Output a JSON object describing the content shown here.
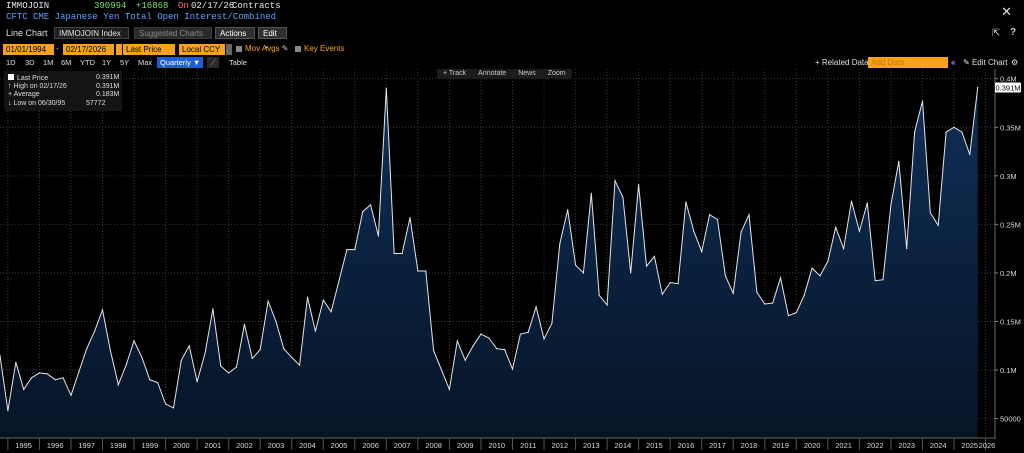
{
  "header": {
    "ticker": "IMMOJOIN",
    "last": "390994",
    "change": "+16868",
    "on": "On",
    "date": "02/17/26",
    "unit": "Contracts",
    "description": "CFTC CME Japanese Yen Total Open Interest/Combined",
    "colors": {
      "last": "#7ce36a",
      "change": "#7ce36a",
      "on": "#ff6a5a"
    }
  },
  "toolbar": {
    "chart_type": "Line Chart",
    "security": "IMMOJOIN Index",
    "suggested": "Suggested Charts",
    "actions": "Actions",
    "edit": "Edit"
  },
  "range": {
    "start": "01/01/1994",
    "end": "02/17/2026",
    "field": "Last Price",
    "currency": "Local CCY",
    "mov_avgs": "Mov Avgs",
    "key_events": "Key Events"
  },
  "periods": [
    "1D",
    "3D",
    "1M",
    "6M",
    "YTD",
    "1Y",
    "5Y",
    "Max"
  ],
  "frequency": "Quarterly",
  "table_label": "Table",
  "related": {
    "label": "+ Related Data",
    "placeholder": "Add Data",
    "edit_chart": "Edit Chart"
  },
  "chart_tools": [
    "+ Track",
    "Annotate",
    "News",
    "Zoom"
  ],
  "legend": [
    {
      "label": "Last Price",
      "value": "0.391M"
    },
    {
      "label": "High on 02/17/26",
      "value": "0.391M"
    },
    {
      "label": "Average",
      "value": "0.183M"
    },
    {
      "label": "Low on 06/30/95",
      "value": "57772"
    }
  ],
  "chart_data": {
    "type": "area",
    "title": "",
    "xlabel": "",
    "ylabel": "",
    "frequency": "quarterly",
    "x_ticks": [
      "1995",
      "1996",
      "1997",
      "1998",
      "1999",
      "2000",
      "2001",
      "2002",
      "2003",
      "2004",
      "2005",
      "2006",
      "2007",
      "2008",
      "2009",
      "2010",
      "2011",
      "2012",
      "2013",
      "2014",
      "2015",
      "2016",
      "2017",
      "2018",
      "2019",
      "2020",
      "2021",
      "2022",
      "2023",
      "2024",
      "2025",
      "2026"
    ],
    "y_ticks": [
      "50000",
      "0.1M",
      "0.15M",
      "0.2M",
      "0.25M",
      "0.3M",
      "0.35M",
      "0.4M"
    ],
    "y_tick_values": [
      50000,
      100000,
      150000,
      200000,
      250000,
      300000,
      350000,
      400000
    ],
    "ylim": [
      30000,
      410000
    ],
    "last_label": "0.391M",
    "start_year": 1994.75,
    "step_years": 0.25,
    "values": [
      115000,
      58000,
      108000,
      80000,
      92000,
      97000,
      96000,
      90000,
      92000,
      74000,
      98000,
      122000,
      140000,
      162000,
      120000,
      85000,
      105000,
      130000,
      113000,
      90000,
      87000,
      65000,
      61000,
      110000,
      125000,
      88000,
      117000,
      163000,
      104000,
      97000,
      103000,
      147000,
      112000,
      121000,
      171000,
      150000,
      122000,
      113000,
      105000,
      175000,
      140000,
      172000,
      160000,
      192000,
      224000,
      224000,
      263000,
      270000,
      238000,
      390000,
      220000,
      220000,
      257000,
      202000,
      202000,
      120000,
      100000,
      80000,
      130000,
      110000,
      125000,
      137000,
      133000,
      122000,
      121000,
      101000,
      137000,
      139000,
      165000,
      132000,
      148000,
      230000,
      265000,
      208000,
      200000,
      282000,
      177000,
      167000,
      295000,
      278000,
      200000,
      291000,
      207000,
      217000,
      178000,
      190000,
      189000,
      273000,
      243000,
      222000,
      260000,
      255000,
      197000,
      179000,
      242000,
      260000,
      180000,
      168000,
      169000,
      195000,
      156000,
      159000,
      177000,
      205000,
      197000,
      212000,
      247000,
      225000,
      274000,
      243000,
      272000,
      192000,
      193000,
      270000,
      315000,
      225000,
      345000,
      377000,
      262000,
      249000,
      345000,
      350000,
      345000,
      322000,
      391000
    ]
  },
  "style": {
    "accent": "#f7a21b",
    "line": "#e6e6e6",
    "fill_top": "#0f2f57",
    "fill_bottom": "#061426",
    "grid": "#3a3a3a"
  }
}
